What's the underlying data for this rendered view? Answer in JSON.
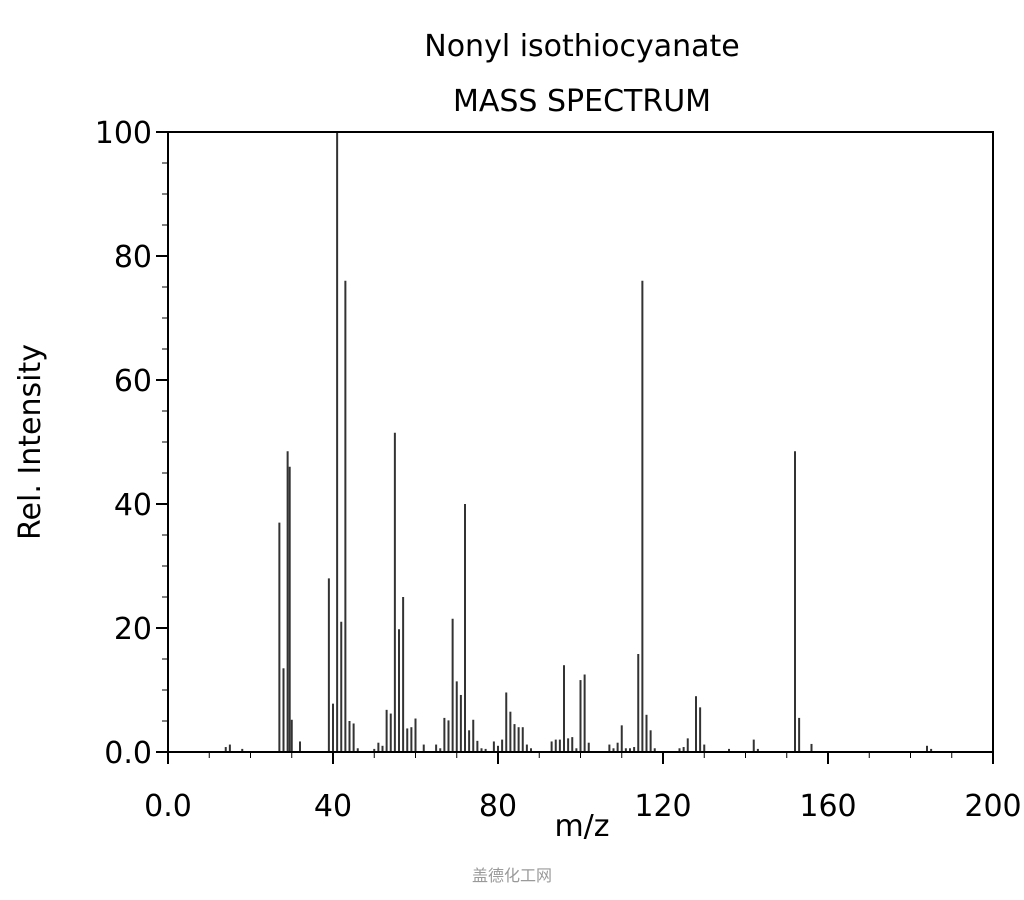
{
  "chart_data": {
    "type": "bar",
    "title": "Nonyl isothiocyanate",
    "subtitle": "MASS SPECTRUM",
    "xlabel": "m/z",
    "ylabel": "Rel. Intensity",
    "xlim": [
      0,
      200
    ],
    "ylim": [
      0,
      100
    ],
    "xticks": [
      "0.0",
      "40",
      "80",
      "120",
      "160",
      "200"
    ],
    "yticks": [
      "0.0",
      "20",
      "40",
      "60",
      "80",
      "100"
    ],
    "grid": false,
    "bar_color": "#333333",
    "peaks": [
      [
        14,
        0.8
      ],
      [
        15,
        1.2
      ],
      [
        18,
        0.5
      ],
      [
        27,
        37
      ],
      [
        28,
        13.5
      ],
      [
        29,
        48.5
      ],
      [
        29.5,
        46
      ],
      [
        30,
        5.2
      ],
      [
        32,
        1.7
      ],
      [
        39,
        28
      ],
      [
        40,
        7.8
      ],
      [
        41,
        100
      ],
      [
        42,
        21
      ],
      [
        43,
        76
      ],
      [
        44,
        5
      ],
      [
        45,
        4.6
      ],
      [
        46,
        0.6
      ],
      [
        50,
        0.5
      ],
      [
        51,
        1.5
      ],
      [
        52,
        1
      ],
      [
        53,
        6.8
      ],
      [
        54,
        6.2
      ],
      [
        55,
        51.5
      ],
      [
        56,
        19.8
      ],
      [
        57,
        25
      ],
      [
        58,
        3.8
      ],
      [
        59,
        4
      ],
      [
        60,
        5.4
      ],
      [
        62,
        1.2
      ],
      [
        65,
        1.2
      ],
      [
        66,
        0.6
      ],
      [
        67,
        5.5
      ],
      [
        68,
        5.1
      ],
      [
        69,
        21.5
      ],
      [
        70,
        11.4
      ],
      [
        71,
        9.2
      ],
      [
        72,
        40
      ],
      [
        73,
        3.5
      ],
      [
        74,
        5.2
      ],
      [
        75,
        1.8
      ],
      [
        76,
        0.6
      ],
      [
        77,
        0.5
      ],
      [
        79,
        1.7
      ],
      [
        80,
        1
      ],
      [
        81,
        2
      ],
      [
        82,
        9.6
      ],
      [
        83,
        6.5
      ],
      [
        84,
        4.5
      ],
      [
        85,
        4
      ],
      [
        86,
        4
      ],
      [
        87,
        1.2
      ],
      [
        88,
        0.6
      ],
      [
        93,
        1.7
      ],
      [
        94,
        2
      ],
      [
        95,
        2
      ],
      [
        96,
        14
      ],
      [
        97,
        2.2
      ],
      [
        98,
        2.4
      ],
      [
        99,
        0.6
      ],
      [
        100,
        11.6
      ],
      [
        101,
        12.5
      ],
      [
        102,
        1.5
      ],
      [
        107,
        1.2
      ],
      [
        108,
        0.6
      ],
      [
        109,
        1.5
      ],
      [
        110,
        4.3
      ],
      [
        111,
        0.6
      ],
      [
        112,
        0.6
      ],
      [
        113,
        0.8
      ],
      [
        114,
        15.8
      ],
      [
        115,
        76
      ],
      [
        116,
        6
      ],
      [
        117,
        3.5
      ],
      [
        118,
        0.6
      ],
      [
        124,
        0.6
      ],
      [
        125,
        0.8
      ],
      [
        126,
        2.2
      ],
      [
        128,
        9
      ],
      [
        129,
        7.2
      ],
      [
        130,
        1.2
      ],
      [
        136,
        0.5
      ],
      [
        142,
        2
      ],
      [
        143,
        0.5
      ],
      [
        152,
        48.5
      ],
      [
        153,
        5.5
      ],
      [
        156,
        1.3
      ],
      [
        184,
        1
      ],
      [
        185,
        0.5
      ]
    ]
  },
  "watermark": "盖德化工网"
}
